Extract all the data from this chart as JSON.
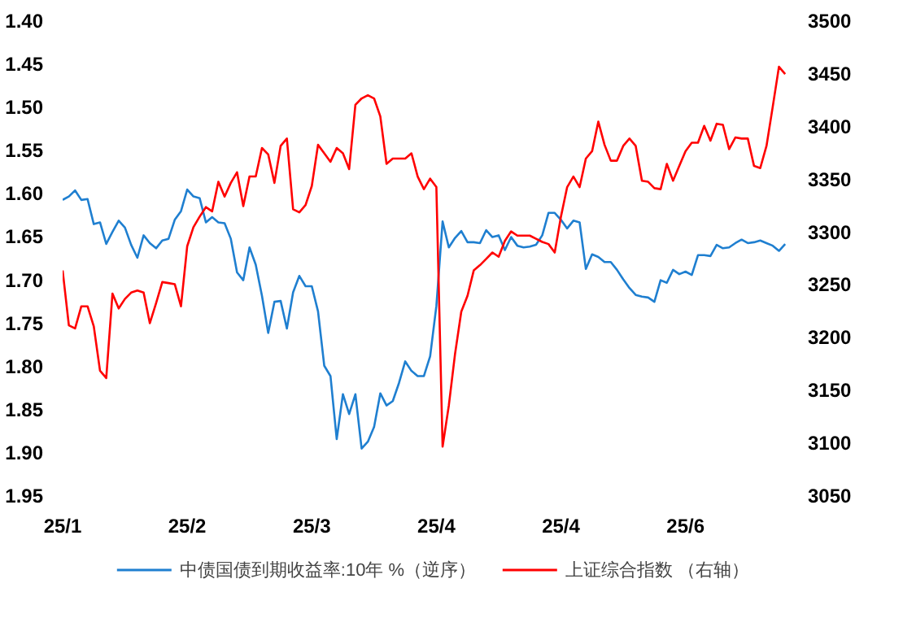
{
  "chart_data": {
    "type": "line",
    "categories": [
      "25/1",
      null,
      null,
      null,
      null,
      null,
      null,
      null,
      null,
      null,
      null,
      null,
      null,
      null,
      null,
      null,
      null,
      null,
      null,
      null,
      "25/2",
      null,
      null,
      null,
      null,
      null,
      null,
      null,
      null,
      null,
      null,
      null,
      null,
      null,
      null,
      null,
      null,
      null,
      null,
      null,
      "25/3",
      null,
      null,
      null,
      null,
      null,
      null,
      null,
      null,
      null,
      null,
      null,
      null,
      null,
      null,
      null,
      null,
      null,
      null,
      null,
      "25/4",
      null,
      null,
      null,
      null,
      null,
      null,
      null,
      null,
      null,
      null,
      null,
      null,
      null,
      null,
      null,
      null,
      null,
      null,
      null,
      "25/4",
      null,
      null,
      null,
      null,
      null,
      null,
      null,
      null,
      null,
      null,
      null,
      null,
      null,
      null,
      null,
      null,
      null,
      null,
      null,
      "25/6",
      null,
      null,
      null,
      null,
      null,
      null,
      null,
      null,
      null,
      null,
      null,
      null,
      null,
      null,
      null,
      null
    ],
    "ylim": [
      1.95,
      1.4
    ],
    "yticks": [
      {
        "value": 1.4,
        "label": "1.40"
      },
      {
        "value": 1.45,
        "label": "1.45"
      },
      {
        "value": 1.5,
        "label": "1.50"
      },
      {
        "value": 1.55,
        "label": "1.55"
      },
      {
        "value": 1.6,
        "label": "1.60"
      },
      {
        "value": 1.65,
        "label": "1.65"
      },
      {
        "value": 1.7,
        "label": "1.70"
      },
      {
        "value": 1.75,
        "label": "1.75"
      },
      {
        "value": 1.8,
        "label": "1.80"
      },
      {
        "value": 1.85,
        "label": "1.85"
      },
      {
        "value": 1.9,
        "label": "1.90"
      },
      {
        "value": 1.95,
        "label": "1.95"
      }
    ],
    "y2lim": [
      3050,
      3500
    ],
    "y2ticks": [
      3050,
      3100,
      3150,
      3200,
      3250,
      3300,
      3350,
      3400,
      3450,
      3500
    ],
    "legend": "bottom",
    "series": [
      {
        "name": "中债国债到期收益率:10年 %（逆序）",
        "color": "#1f7fd0",
        "values": [
          1.608,
          1.604,
          1.597,
          1.608,
          1.607,
          1.636,
          1.634,
          1.659,
          1.645,
          1.632,
          1.64,
          1.66,
          1.675,
          1.649,
          1.658,
          1.664,
          1.655,
          1.653,
          1.631,
          1.621,
          1.596,
          1.604,
          1.606,
          1.634,
          1.628,
          1.634,
          1.635,
          1.653,
          1.692,
          1.701,
          1.663,
          1.683,
          1.719,
          1.762,
          1.726,
          1.725,
          1.757,
          1.715,
          1.696,
          1.708,
          1.708,
          1.737,
          1.8,
          1.812,
          1.885,
          1.833,
          1.856,
          1.833,
          1.896,
          1.888,
          1.871,
          1.832,
          1.846,
          1.841,
          1.82,
          1.795,
          1.806,
          1.812,
          1.812,
          1.789,
          1.731,
          1.633,
          1.663,
          1.652,
          1.644,
          1.657,
          1.657,
          1.658,
          1.643,
          1.651,
          1.649,
          1.666,
          1.651,
          1.661,
          1.663,
          1.662,
          1.66,
          1.649,
          1.623,
          1.623,
          1.631,
          1.641,
          1.632,
          1.634,
          1.688,
          1.671,
          1.674,
          1.68,
          1.68,
          1.689,
          1.7,
          1.71,
          1.718,
          1.72,
          1.721,
          1.726,
          1.701,
          1.704,
          1.689,
          1.694,
          1.691,
          1.695,
          1.672,
          1.672,
          1.673,
          1.66,
          1.664,
          1.663,
          1.658,
          1.654,
          1.658,
          1.657,
          1.655,
          1.658,
          1.661,
          1.667,
          1.659
        ]
      },
      {
        "name": "上证综合指数 （右轴）",
        "color": "#ff0000",
        "axis": "y2",
        "values": [
          3263,
          3211,
          3208,
          3229,
          3229,
          3210,
          3168,
          3161,
          3241,
          3227,
          3236,
          3242,
          3244,
          3242,
          3213,
          3232,
          3252,
          3251,
          3250,
          3229,
          3286,
          3304,
          3314,
          3323,
          3319,
          3347,
          3333,
          3346,
          3356,
          3324,
          3352,
          3352,
          3379,
          3373,
          3346,
          3381,
          3388,
          3321,
          3318,
          3325,
          3343,
          3382,
          3374,
          3366,
          3379,
          3374,
          3359,
          3420,
          3426,
          3429,
          3426,
          3409,
          3364,
          3369,
          3369,
          3369,
          3374,
          3352,
          3340,
          3350,
          3342,
          3096,
          3135,
          3184,
          3224,
          3239,
          3263,
          3268,
          3274,
          3280,
          3276,
          3291,
          3300,
          3296,
          3296,
          3296,
          3293,
          3290,
          3288,
          3280,
          3314,
          3342,
          3352,
          3342,
          3369,
          3376,
          3404,
          3382,
          3367,
          3367,
          3381,
          3388,
          3381,
          3348,
          3347,
          3341,
          3340,
          3364,
          3348,
          3362,
          3376,
          3384,
          3384,
          3400,
          3386,
          3402,
          3401,
          3378,
          3389,
          3388,
          3388,
          3362,
          3360,
          3381,
          3418,
          3456,
          3449
        ]
      }
    ]
  }
}
